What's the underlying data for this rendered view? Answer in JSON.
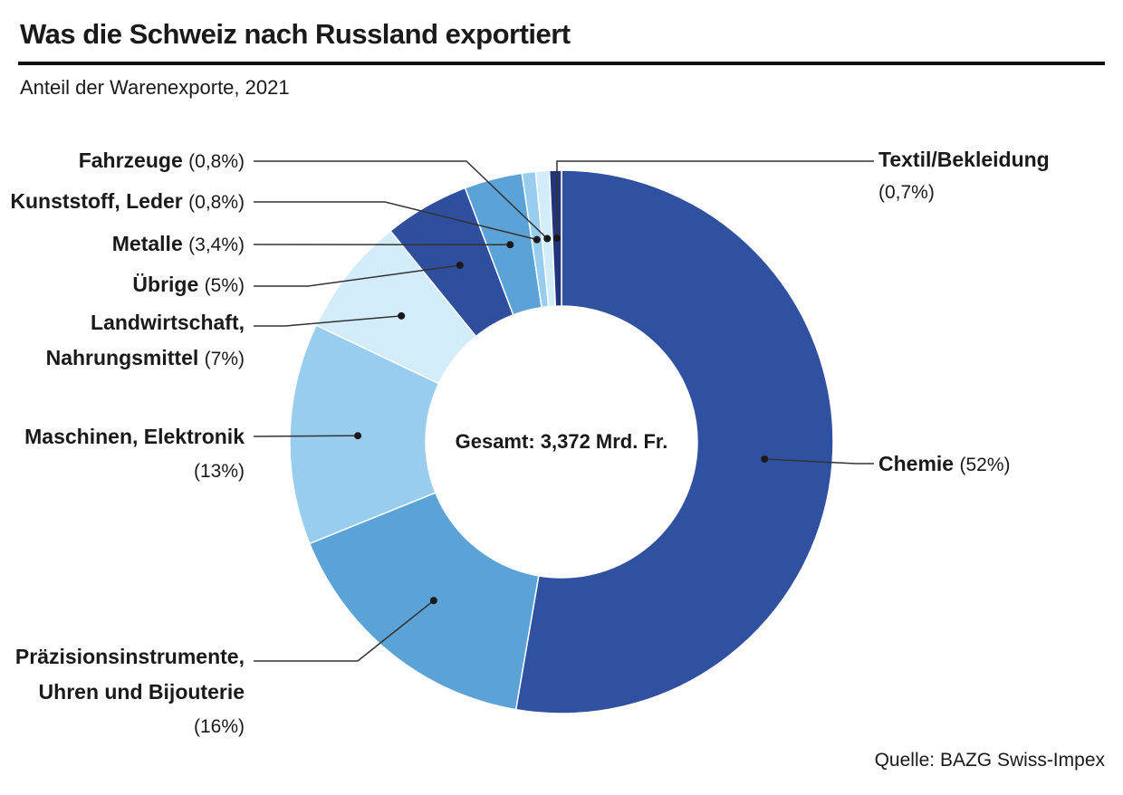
{
  "title": "Was die Schweiz nach Russland exportiert",
  "subtitle": "Anteil der Warenexporte, 2021",
  "source": "Quelle: BAZG Swiss-Impex",
  "center_label": "Gesamt: 3,372 Mrd. Fr.",
  "chart_data": {
    "type": "pie",
    "donut": true,
    "start": "top, clockwise",
    "slices": [
      {
        "label": "Chemie",
        "value": 52,
        "value_label": "(52%)",
        "color": "#3050a0"
      },
      {
        "label": "Präzisionsinstrumente, Uhren und Bijouterie",
        "value": 16,
        "value_label": "(16%)",
        "color": "#5ba3d6"
      },
      {
        "label": "Maschinen, Elektronik",
        "value": 13,
        "value_label": "(13%)",
        "color": "#98cdef"
      },
      {
        "label": "Landwirtschaft, Nahrungsmittel",
        "value": 7,
        "value_label": "(7%)",
        "color": "#d2ecfa"
      },
      {
        "label": "Übrige",
        "value": 5,
        "value_label": "(5%)",
        "color": "#2f4e9e"
      },
      {
        "label": "Metalle",
        "value": 3.4,
        "value_label": "3,4%",
        "color": "#5ba3d6"
      },
      {
        "label": "Kunststoff, Leder",
        "value": 0.8,
        "value_label": "0,8%",
        "color": "#98cdef"
      },
      {
        "label": "Fahrzeuge",
        "value": 0.8,
        "value_label": "0,8%",
        "color": "#d2ecfa"
      },
      {
        "label": "Textil/Bekleidung",
        "value": 0.7,
        "value_label": "(0,7%)",
        "color": "#22347a"
      }
    ]
  },
  "labels": {
    "chemie": {
      "name": "Chemie",
      "value": "(52%)"
    },
    "praezision": {
      "line1": "Präzisionsinstrumente,",
      "line2": "Uhren und Bijouterie",
      "value": "(16%)"
    },
    "maschinen": {
      "name": "Maschinen, Elektronik",
      "value": "(13%)"
    },
    "landwirtschaft": {
      "line1": "Landwirtschaft,",
      "line2": "Nahrungsmittel",
      "value": "(7%)"
    },
    "uebrige": {
      "name": "Übrige",
      "value": "(5%)"
    },
    "metalle": {
      "name": "Metalle",
      "value": "(3,4%)"
    },
    "kunststoff": {
      "name": "Kunststoff, Leder",
      "value": "(0,8%)"
    },
    "fahrzeuge": {
      "name": "Fahrzeuge",
      "value": "(0,8%)"
    },
    "textil": {
      "name": "Textil/Bekleidung",
      "value": "(0,7%)"
    }
  }
}
